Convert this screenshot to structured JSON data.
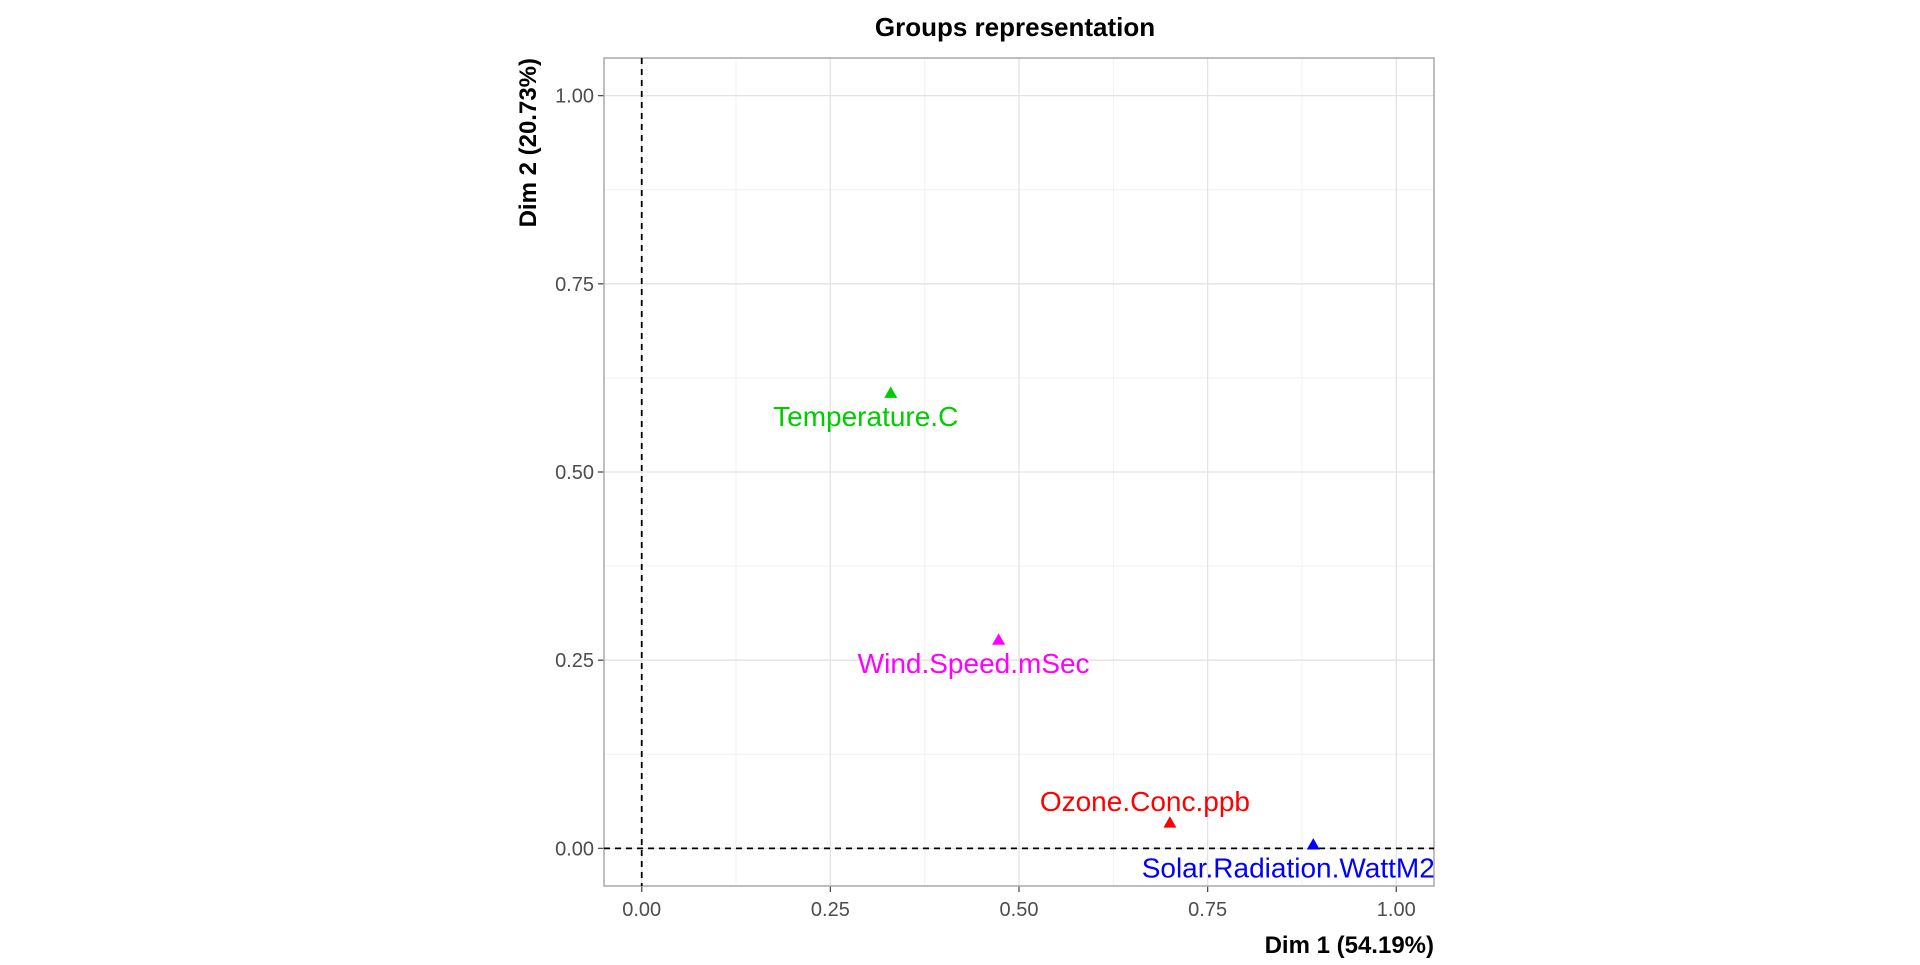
{
  "chart_data": {
    "type": "scatter",
    "title": "Groups representation",
    "xlabel": "Dim 1 (54.19%)",
    "ylabel": "Dim 2 (20.73%)",
    "xlim": [
      -0.05,
      1.05
    ],
    "ylim": [
      -0.05,
      1.05
    ],
    "x_ticks": [
      "0.00",
      "0.25",
      "0.50",
      "0.75",
      "1.00"
    ],
    "y_ticks": [
      "0.00",
      "0.25",
      "0.50",
      "0.75",
      "1.00"
    ],
    "grid": true,
    "reference_lines": {
      "x": 0,
      "y": 0,
      "style": "dashed"
    },
    "marker": "triangle",
    "points": [
      {
        "label": "Temperature.C",
        "x": 0.33,
        "y": 0.605,
        "color": "#00cd00",
        "label_side": "below"
      },
      {
        "label": "Wind.Speed.mSec",
        "x": 0.473,
        "y": 0.277,
        "color": "#ff00ff",
        "label_side": "below"
      },
      {
        "label": "Ozone.Conc.ppb",
        "x": 0.7,
        "y": 0.034,
        "color": "#ff0000",
        "label_side": "above"
      },
      {
        "label": "Solar.Radiation.WattM2",
        "x": 0.89,
        "y": 0.005,
        "color": "#0000ff",
        "label_side": "below"
      }
    ]
  }
}
